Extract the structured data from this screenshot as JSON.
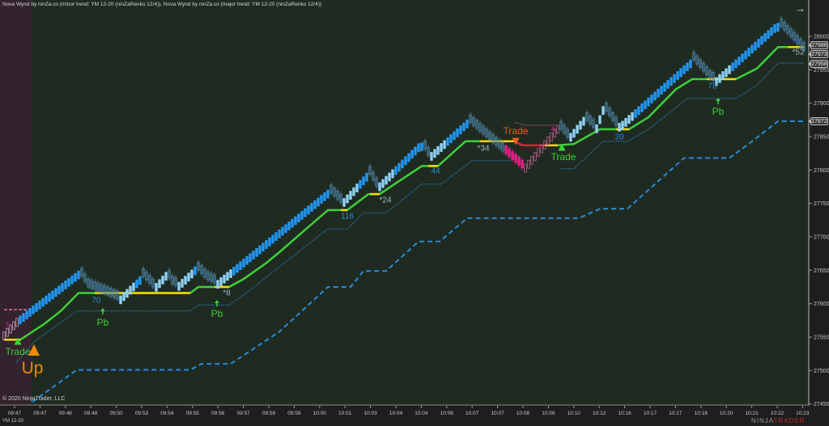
{
  "header": {
    "indicator_text": "Nova Wynd by ninZa.co (minor trend: YM 12-20 (ninZaRenko 12/4)), Nova Wynd by ninZa.co (major trend: YM 12-20 (ninZaRenko 12/4))",
    "copyright": "© 2020 NinjaTrader, LLC",
    "instrument": "YM 12-20",
    "logo_prefix": "NINJA",
    "logo_suffix": "TRADER",
    "nav_icon": "arrow-right-icon"
  },
  "colors": {
    "background": "#1f2b21",
    "session_shade": "#33232d",
    "up_brick": "#2196f3",
    "pullback_brick": "#8fd3f5",
    "down_brick": "#4f86aa",
    "bear_brick": "#e91e8c",
    "trend_line": "#3fcf3a",
    "flat_highlight": "#f5d800",
    "bear_trend": "#e8193c",
    "minor_trail": "#2a8ad8",
    "major_trail": "#2a8ad8",
    "buy": "#3fcf3a",
    "sell": "#ef5a1e",
    "up_label": "#f08a0c"
  },
  "chart_data": {
    "type": "renko",
    "ylim": [
      27450,
      28030
    ],
    "y_ticks": [
      "28000",
      "27950",
      "27900",
      "27850",
      "27800",
      "27750",
      "27700",
      "27650",
      "27600",
      "27550",
      "27500",
      "27450"
    ],
    "x_ticks": [
      "09:47",
      "09:47",
      "09:48",
      "09:48",
      "09:50",
      "09:53",
      "09:54",
      "09:55",
      "09:56",
      "09:57",
      "09:58",
      "09:59",
      "10:00",
      "10:01",
      "10:03",
      "10:04",
      "10:04",
      "10:06",
      "10:07",
      "10:07",
      "10:08",
      "10:09",
      "10:10",
      "10:12",
      "10:16",
      "10:17",
      "10:17",
      "10:18",
      "10:20",
      "10:21",
      "10:22",
      "10:23"
    ],
    "bar_count": 248,
    "price_path": [
      [
        0,
        27558
      ],
      [
        3.75,
        27577
      ],
      [
        23,
        27649
      ],
      [
        26,
        27625
      ],
      [
        35,
        27607
      ],
      [
        42.5,
        27643
      ],
      [
        46,
        27625
      ],
      [
        50,
        27647
      ],
      [
        52.5,
        27625
      ],
      [
        59,
        27655
      ],
      [
        62.5,
        27637
      ],
      [
        65,
        27631
      ],
      [
        100,
        27770
      ],
      [
        104,
        27752
      ],
      [
        112.5,
        27798
      ],
      [
        115,
        27776
      ],
      [
        128.75,
        27843
      ],
      [
        131,
        27822
      ],
      [
        143,
        27875
      ],
      [
        160,
        27803
      ],
      [
        171,
        27867
      ],
      [
        174,
        27849
      ],
      [
        179,
        27879
      ],
      [
        182.5,
        27861
      ],
      [
        185,
        27895
      ],
      [
        189,
        27867
      ],
      [
        191,
        27873
      ],
      [
        212.5,
        27967
      ],
      [
        218.75,
        27933
      ],
      [
        238.75,
        28021
      ],
      [
        247,
        27979
      ]
    ],
    "bear_bar_range": [
      155,
      171
    ],
    "trend_line": [
      [
        0,
        27546
      ],
      [
        5,
        27546
      ],
      [
        12.5,
        27570
      ],
      [
        17.5,
        27589
      ],
      [
        23,
        27616
      ],
      [
        57.5,
        27616
      ],
      [
        60,
        27625
      ],
      [
        69.5,
        27625
      ],
      [
        74,
        27637
      ],
      [
        81,
        27661
      ],
      [
        85,
        27677
      ],
      [
        100,
        27740
      ],
      [
        106,
        27740
      ],
      [
        112.5,
        27764
      ],
      [
        116,
        27764
      ],
      [
        129,
        27806
      ],
      [
        134,
        27806
      ],
      [
        142.5,
        27843
      ],
      [
        157.5,
        27843
      ],
      [
        160,
        27837
      ],
      [
        171,
        27837
      ],
      [
        176,
        27839
      ],
      [
        184,
        27861
      ],
      [
        193,
        27861
      ],
      [
        199,
        27879
      ],
      [
        207.5,
        27921
      ],
      [
        212.5,
        27936
      ],
      [
        226,
        27936
      ],
      [
        232.5,
        27952
      ],
      [
        239,
        27984
      ],
      [
        247,
        27984
      ]
    ],
    "flat_highlight_ranges": [
      [
        0,
        5
      ],
      [
        28,
        57.5
      ],
      [
        65,
        69.5
      ],
      [
        104,
        106
      ],
      [
        113,
        116
      ],
      [
        131,
        134
      ],
      [
        147,
        157.5
      ],
      [
        167,
        171
      ],
      [
        189,
        193
      ],
      [
        217,
        226
      ],
      [
        242,
        247
      ]
    ],
    "bear_trend_range": [
      157.5,
      167
    ],
    "minor_trail": [
      [
        [
          3.75,
          27512
        ],
        [
          10,
          27546
        ],
        [
          22.5,
          27589
        ],
        [
          57.5,
          27589
        ],
        [
          60,
          27598
        ],
        [
          69.5,
          27598
        ],
        [
          74,
          27613
        ],
        [
          85,
          27655
        ],
        [
          100,
          27712
        ],
        [
          106,
          27712
        ],
        [
          111,
          27736
        ],
        [
          118,
          27736
        ],
        [
          129,
          27779
        ],
        [
          135,
          27779
        ],
        [
          144.5,
          27814
        ],
        [
          157,
          27814
        ]
      ],
      [
        [
          172,
          27802
        ],
        [
          176,
          27802
        ],
        [
          185,
          27843
        ],
        [
          192.5,
          27843
        ],
        [
          199,
          27861
        ],
        [
          211,
          27907
        ],
        [
          226,
          27907
        ],
        [
          232.5,
          27927
        ],
        [
          239,
          27960
        ],
        [
          247,
          27960
        ]
      ]
    ],
    "bear_trail": [
      [
        158,
        27871
      ],
      [
        161,
        27867
      ],
      [
        171,
        27867
      ]
    ],
    "major_trail": [
      [
        8.75,
        27453
      ],
      [
        22.5,
        27501
      ],
      [
        57.5,
        27501
      ],
      [
        61,
        27510
      ],
      [
        70,
        27510
      ],
      [
        85,
        27558
      ],
      [
        100,
        27625
      ],
      [
        107,
        27625
      ],
      [
        111,
        27649
      ],
      [
        118,
        27649
      ],
      [
        128,
        27693
      ],
      [
        134.5,
        27693
      ],
      [
        143,
        27728
      ],
      [
        177.5,
        27728
      ],
      [
        184,
        27742
      ],
      [
        192.5,
        27742
      ],
      [
        210,
        27818
      ],
      [
        224,
        27818
      ],
      [
        231,
        27843
      ],
      [
        239,
        27873
      ],
      [
        247,
        27873
      ]
    ],
    "resistance_start": [
      [
        0,
        27591
      ],
      [
        8,
        27591
      ]
    ],
    "price_flags": [
      "27986",
      "27973",
      "27958",
      "27872"
    ],
    "annotations": {
      "pullback_counts": [
        "70",
        "*8",
        "116",
        "*24",
        "44",
        "*34",
        "20",
        "78",
        "*52"
      ],
      "pb_label": "Pb",
      "trade_label": "Trade",
      "up_label": "Up",
      "bear_count": "4",
      "start_count": "5"
    }
  }
}
